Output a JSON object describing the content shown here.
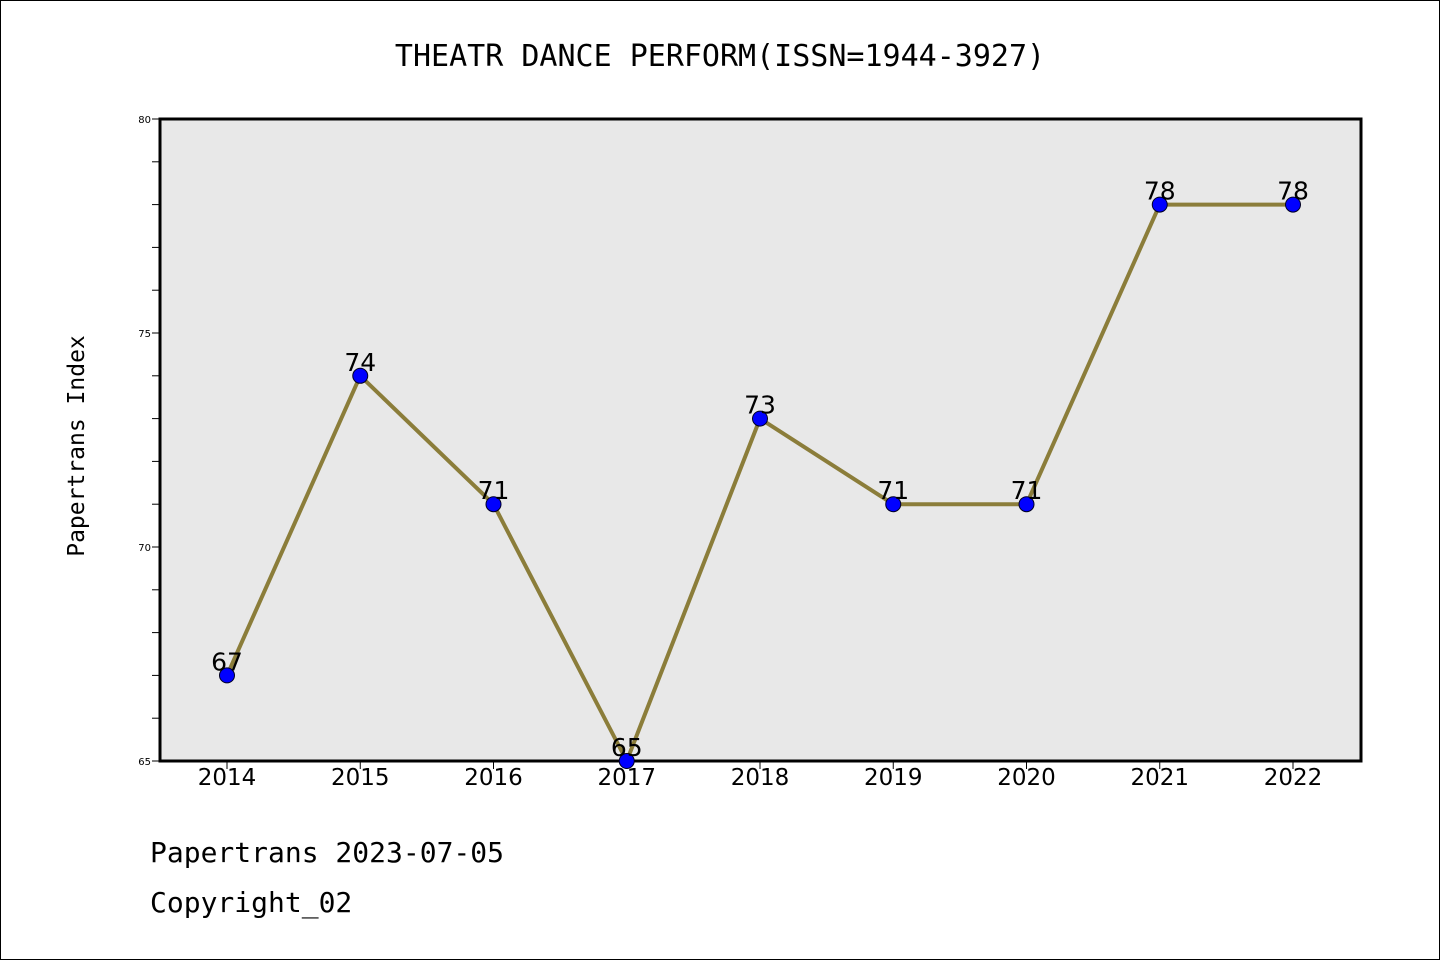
{
  "chart_data": {
    "type": "line",
    "title": "THEATR DANCE PERFORM(ISSN=1944-3927)",
    "xlabel": "",
    "ylabel": "Papertrans Index",
    "categories": [
      "2014",
      "2015",
      "2016",
      "2017",
      "2018",
      "2019",
      "2020",
      "2021",
      "2022"
    ],
    "series": [
      {
        "values": [
          67,
          74,
          71,
          65,
          73,
          71,
          71,
          78,
          78
        ]
      }
    ],
    "data_labels": [
      "67",
      "74",
      "71",
      "65",
      "73",
      "71",
      "71",
      "78",
      "78"
    ],
    "ylim": [
      65,
      80
    ],
    "yticks": [
      "65",
      "70",
      "75",
      "80"
    ],
    "grid": false,
    "colors": {
      "line": "#8B7D3A",
      "marker": "#0000FF",
      "plot_bg": "#E8E8E8"
    }
  },
  "footer": {
    "line1": "Papertrans 2023-07-05",
    "line2": "Copyright_02"
  }
}
